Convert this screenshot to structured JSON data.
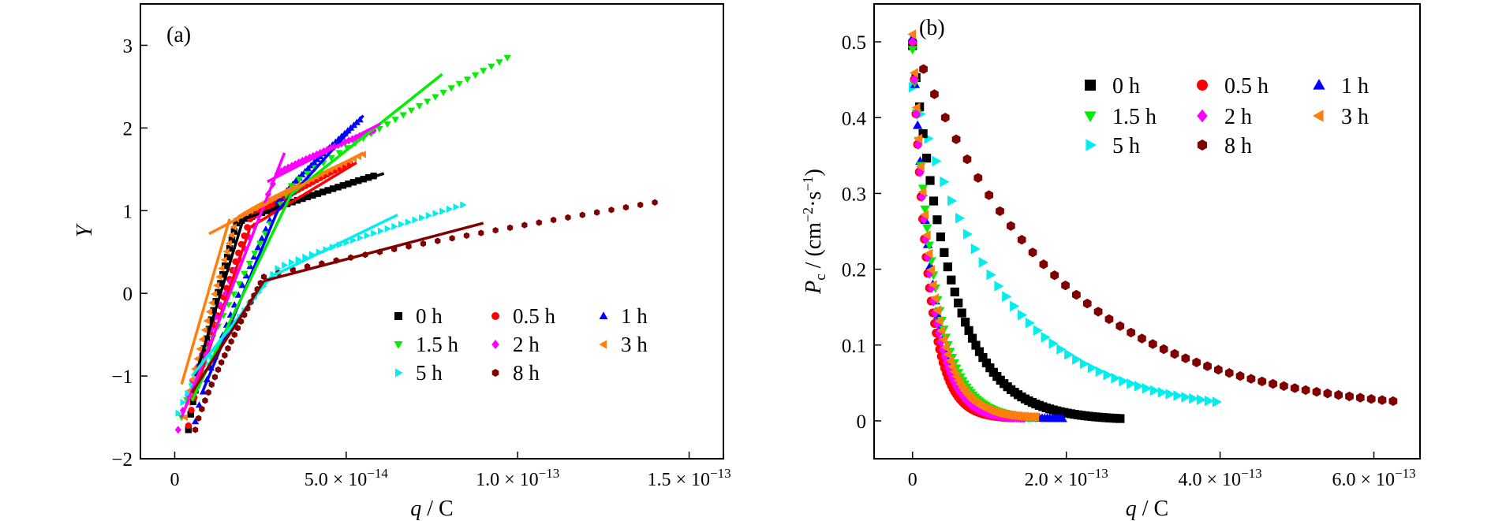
{
  "chart_data": [
    {
      "panel_label": "(a)",
      "type": "scatter",
      "xlabel": "q / C",
      "ylabel": "Y",
      "xlim": [
        -1e-14,
        1.6e-13
      ],
      "ylim": [
        -2,
        3.5
      ],
      "xticks": [
        0,
        5e-14,
        1e-13,
        1.5e-13
      ],
      "xtick_labels": [
        "0",
        "5.0 × 10",
        "1.0 × 10",
        "1.5 × 10"
      ],
      "xtick_exponents": [
        "",
        "−14",
        "−13",
        "−13"
      ],
      "yticks": [
        -2,
        -1,
        0,
        1,
        2,
        3
      ],
      "ytick_labels": [
        "−2",
        "−1",
        "0",
        "1",
        "2",
        "3"
      ],
      "grid": false,
      "legend_placement": "lower-right",
      "series": [
        {
          "name": "0 h",
          "marker": "square",
          "color": "#000000",
          "start": [
            4e-15,
            -1.65
          ],
          "knee": [
            1.8e-14,
            0.85
          ],
          "end": [
            5.8e-14,
            1.42
          ],
          "fit": [
            [
              6e-15,
              -1.0
            ],
            [
              2e-14,
              0.9
            ],
            [
              2e-14,
              0.9
            ],
            [
              6.1e-14,
              1.45
            ]
          ]
        },
        {
          "name": "0.5 h",
          "marker": "circle",
          "color": "#ff0000",
          "start": [
            4e-15,
            -1.6
          ],
          "knee": [
            2.2e-14,
            0.9
          ],
          "end": [
            5.1e-14,
            1.58
          ],
          "fit": [
            [
              5e-15,
              -1.3
            ],
            [
              2.2e-14,
              0.8
            ],
            [
              2.2e-14,
              0.8
            ],
            [
              5.3e-14,
              1.58
            ]
          ]
        },
        {
          "name": "1 h",
          "marker": "triangle-up",
          "color": "#0000ff",
          "start": [
            6e-15,
            -1.55
          ],
          "knee": [
            3e-14,
            1.1
          ],
          "end": [
            5.4e-14,
            2.1
          ],
          "fit": [
            [
              8e-15,
              -1.2
            ],
            [
              3e-14,
              1.0
            ],
            [
              3e-14,
              1.0
            ],
            [
              5.5e-14,
              2.15
            ]
          ]
        },
        {
          "name": "1.5 h",
          "marker": "triangle-down",
          "color": "#00ee00",
          "start": [
            2e-15,
            -1.5
          ],
          "knee": [
            3.4e-14,
            1.3
          ],
          "end": [
            9.7e-14,
            2.85
          ],
          "fit": [
            [
              5e-15,
              -1.3
            ],
            [
              3.4e-14,
              1.2
            ],
            [
              3.4e-14,
              1.2
            ],
            [
              7.8e-14,
              2.65
            ]
          ]
        },
        {
          "name": "2 h",
          "marker": "diamond",
          "color": "#ff00ff",
          "start": [
            1e-15,
            -1.65
          ],
          "knee": [
            3e-14,
            1.45
          ],
          "end": [
            5.8e-14,
            1.97
          ],
          "fit": [
            [
              2e-15,
              -1.5
            ],
            [
              3.2e-14,
              1.7
            ],
            [
              2.7e-14,
              1.35
            ],
            [
              6e-14,
              2.05
            ]
          ]
        },
        {
          "name": "3 h",
          "marker": "triangle-left",
          "color": "#ff7f0e",
          "start": [
            3e-15,
            -1.5
          ],
          "knee": [
            1.8e-14,
            0.9
          ],
          "end": [
            5.5e-14,
            1.68
          ],
          "fit": [
            [
              2e-15,
              -1.1
            ],
            [
              1.6e-14,
              0.9
            ],
            [
              1e-14,
              0.72
            ],
            [
              5.5e-14,
              1.7
            ]
          ]
        },
        {
          "name": "5 h",
          "marker": "triangle-right",
          "color": "#00eeee",
          "start": [
            1e-15,
            -1.45
          ],
          "knee": [
            3e-14,
            0.3
          ],
          "end": [
            8.4e-14,
            1.07
          ],
          "fit": [
            [
              5e-15,
              -1.0
            ],
            [
              2.8e-14,
              0.2
            ],
            [
              2.8e-14,
              0.2
            ],
            [
              6.5e-14,
              0.95
            ]
          ]
        },
        {
          "name": "8 h",
          "marker": "hexagon",
          "color": "#800000",
          "start": [
            6e-15,
            -1.65
          ],
          "knee": [
            2.6e-14,
            0.2
          ],
          "end": [
            1.4e-13,
            1.1
          ],
          "fit": [
            [
              5e-15,
              -1.2
            ],
            [
              2.6e-14,
              0.15
            ],
            [
              2.6e-14,
              0.15
            ],
            [
              9e-14,
              0.85
            ]
          ]
        }
      ]
    },
    {
      "panel_label": "(b)",
      "type": "scatter",
      "xlabel": "q / C",
      "ylabel": "Pc / (cm−2·s−1)",
      "xlim": [
        -5e-14,
        6.6e-13
      ],
      "ylim": [
        -0.05,
        0.55
      ],
      "xticks": [
        0,
        2e-13,
        4e-13,
        6e-13
      ],
      "xtick_labels": [
        "0",
        "2.0 × 10",
        "4.0 × 10",
        "6.0 × 10"
      ],
      "xtick_exponents": [
        "",
        "−13",
        "−13",
        "−13"
      ],
      "yticks": [
        0,
        0.1,
        0.2,
        0.3,
        0.4,
        0.5
      ],
      "ytick_labels": [
        "0",
        "0.1",
        "0.2",
        "0.3",
        "0.4",
        "0.5"
      ],
      "grid": false,
      "legend_placement": "upper-right",
      "series": [
        {
          "name": "0 h",
          "marker": "square",
          "color": "#000000",
          "x_end": 2.7e-13,
          "y_start": 0.495,
          "y_end": 0.003,
          "decay": 0.19,
          "points": 60
        },
        {
          "name": "0.5 h",
          "marker": "circle",
          "color": "#ff0000",
          "x_end": 1.3e-13,
          "y_start": 0.5,
          "y_end": 0.004,
          "decay": 0.16,
          "points": 60
        },
        {
          "name": "1 h",
          "marker": "triangle-up",
          "color": "#0000ff",
          "x_end": 1.95e-13,
          "y_start": 0.505,
          "y_end": 0.003,
          "decay": 0.13,
          "points": 60
        },
        {
          "name": "1.5 h",
          "marker": "triangle-down",
          "color": "#00ee00",
          "x_end": 1.6e-13,
          "y_start": 0.49,
          "y_end": 0.004,
          "decay": 0.18,
          "points": 60
        },
        {
          "name": "2 h",
          "marker": "diamond",
          "color": "#ff00ff",
          "x_end": 1.45e-13,
          "y_start": 0.5,
          "y_end": 0.004,
          "decay": 0.16,
          "points": 60
        },
        {
          "name": "3 h",
          "marker": "triangle-left",
          "color": "#ff7f0e",
          "x_end": 1.6e-13,
          "y_start": 0.51,
          "y_end": 0.005,
          "decay": 0.16,
          "points": 60
        },
        {
          "name": "5 h",
          "marker": "triangle-right",
          "color": "#00eeee",
          "x_end": 3.95e-13,
          "y_start": 0.44,
          "y_end": 0.025,
          "decay": 0.3,
          "points": 40
        },
        {
          "name": "8 h",
          "marker": "hexagon",
          "color": "#800000",
          "x_end": 6.25e-13,
          "y_start": 0.5,
          "y_end": 0.026,
          "decay": 0.3,
          "points": 45
        }
      ]
    }
  ]
}
